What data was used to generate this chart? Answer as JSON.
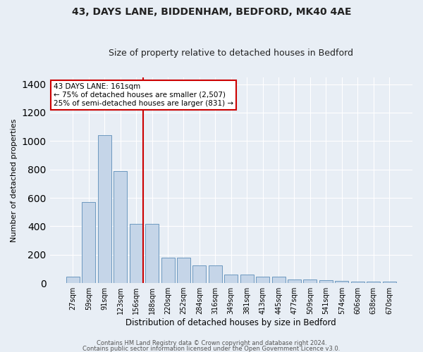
{
  "title1": "43, DAYS LANE, BIDDENHAM, BEDFORD, MK40 4AE",
  "title2": "Size of property relative to detached houses in Bedford",
  "xlabel": "Distribution of detached houses by size in Bedford",
  "ylabel": "Number of detached properties",
  "categories": [
    "27sqm",
    "59sqm",
    "91sqm",
    "123sqm",
    "156sqm",
    "188sqm",
    "220sqm",
    "252sqm",
    "284sqm",
    "316sqm",
    "349sqm",
    "381sqm",
    "413sqm",
    "445sqm",
    "477sqm",
    "509sqm",
    "541sqm",
    "574sqm",
    "606sqm",
    "638sqm",
    "670sqm"
  ],
  "values": [
    47,
    570,
    1040,
    790,
    415,
    415,
    180,
    180,
    125,
    125,
    60,
    60,
    47,
    47,
    25,
    25,
    20,
    15,
    10,
    10,
    10
  ],
  "bar_color": "#c5d5e8",
  "bar_edge_color": "#5b8db8",
  "vline_index": 4,
  "vline_color": "#cc0000",
  "annotation_text": "43 DAYS LANE: 161sqm\n← 75% of detached houses are smaller (2,507)\n25% of semi-detached houses are larger (831) →",
  "annotation_box_color": "#ffffff",
  "annotation_box_edge": "#cc0000",
  "ylim": [
    0,
    1450
  ],
  "yticks": [
    0,
    200,
    400,
    600,
    800,
    1000,
    1200,
    1400
  ],
  "footer1": "Contains HM Land Registry data © Crown copyright and database right 2024.",
  "footer2": "Contains public sector information licensed under the Open Government Licence v3.0.",
  "bg_color": "#e8eef5",
  "plot_bg_color": "#e8eef5",
  "grid_color": "#ffffff",
  "title1_fontsize": 10,
  "title2_fontsize": 9,
  "ylabel_fontsize": 8,
  "xlabel_fontsize": 8.5,
  "tick_fontsize": 7,
  "footer_fontsize": 6,
  "annotation_fontsize": 7.5
}
